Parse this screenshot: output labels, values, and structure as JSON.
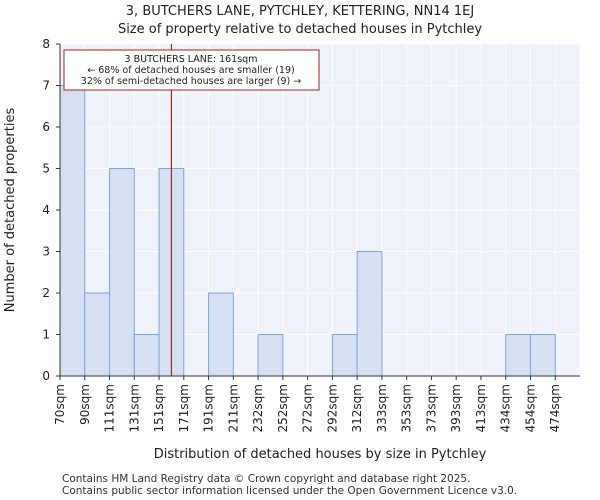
{
  "chart_data": {
    "type": "bar",
    "title_line1": "3, BUTCHERS LANE, PYTCHLEY, KETTERING, NN14 1EJ",
    "title_line2": "Size of property relative to detached houses in Pytchley",
    "xlabel": "Distribution of detached houses by size in Pytchley",
    "ylabel": "Number of detached properties",
    "categories": [
      "70sqm",
      "90sqm",
      "111sqm",
      "131sqm",
      "151sqm",
      "171sqm",
      "191sqm",
      "211sqm",
      "232sqm",
      "252sqm",
      "272sqm",
      "292sqm",
      "312sqm",
      "333sqm",
      "353sqm",
      "373sqm",
      "393sqm",
      "413sqm",
      "434sqm",
      "454sqm",
      "474sqm"
    ],
    "values": [
      7,
      2,
      5,
      1,
      5,
      0,
      2,
      0,
      1,
      0,
      0,
      1,
      3,
      0,
      0,
      0,
      0,
      0,
      1,
      1,
      0
    ],
    "ylim": [
      0,
      8
    ],
    "yticks": [
      0,
      1,
      2,
      3,
      4,
      5,
      6,
      7,
      8
    ],
    "bar_color": "#d6e0f3",
    "bar_edge_color": "#7fa3d8",
    "marker": {
      "value_index": 4.5,
      "color": "#aa2222",
      "label": "3 BUTCHERS LANE: 161sqm",
      "line2": "← 68% of detached houses are smaller (19)",
      "line3": "32% of semi-detached houses are larger (9) →"
    }
  },
  "footer": {
    "line1": "Contains HM Land Registry data © Crown copyright and database right 2025.",
    "line2": "Contains public sector information licensed under the Open Government Licence v3.0."
  }
}
